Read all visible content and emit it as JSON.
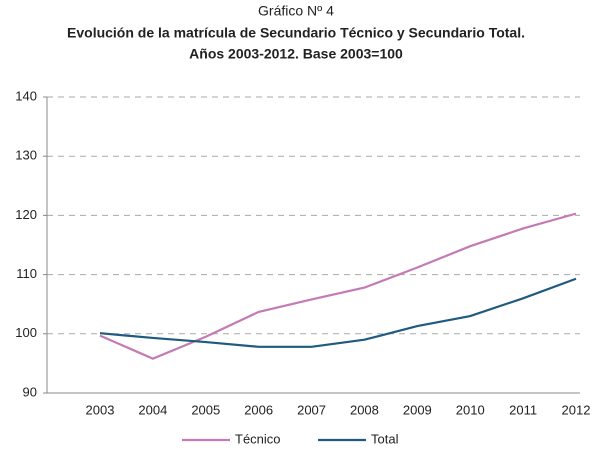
{
  "chart_data": {
    "type": "line",
    "title": "Gráfico Nº 4",
    "subtitle": [
      "Evolución de la matrícula de Secundario Técnico y Secundario Total.",
      "Años 2003-2012. Base 2003=100"
    ],
    "categories": [
      "2003",
      "2004",
      "2005",
      "2006",
      "2007",
      "2008",
      "2009",
      "2010",
      "2011",
      "2012"
    ],
    "series": [
      {
        "name": "Técnico",
        "color": "#c47bb5",
        "values": [
          99.7,
          95.8,
          99.5,
          103.7,
          105.8,
          107.8,
          111.2,
          114.8,
          117.8,
          120.3
        ]
      },
      {
        "name": "Total",
        "color": "#1f5a80",
        "values": [
          100.1,
          99.3,
          98.6,
          97.8,
          97.8,
          99.0,
          101.3,
          103.0,
          106.0,
          109.3
        ]
      }
    ],
    "ylim": [
      90,
      140
    ],
    "yticks": [
      90,
      100,
      110,
      120,
      130,
      140
    ],
    "grid": true,
    "legend": "bottom"
  }
}
